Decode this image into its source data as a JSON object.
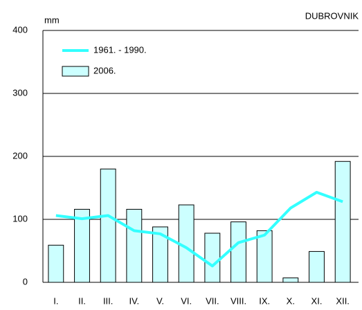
{
  "chart_data": {
    "type": "bar",
    "title": "DUBROVNIK",
    "y_label": "mm",
    "categories": [
      "I.",
      "II.",
      "III.",
      "IV.",
      "V.",
      "VI.",
      "VII.",
      "VIII.",
      "IX.",
      "X.",
      "XI.",
      "XII."
    ],
    "series": [
      {
        "name": "1961. - 1990.",
        "type": "line",
        "color": "#33ffff",
        "values": [
          106,
          101,
          106,
          82,
          77,
          55,
          26,
          63,
          75,
          118,
          143,
          128
        ]
      },
      {
        "name": "2006.",
        "type": "bar",
        "color": "#ccffff",
        "values": [
          59,
          116,
          180,
          116,
          88,
          123,
          78,
          96,
          82,
          7,
          49,
          192
        ]
      }
    ],
    "ylim": [
      0,
      400
    ],
    "yticks": [
      0,
      100,
      200,
      300,
      400
    ],
    "grid": true,
    "legend": "upper left"
  }
}
